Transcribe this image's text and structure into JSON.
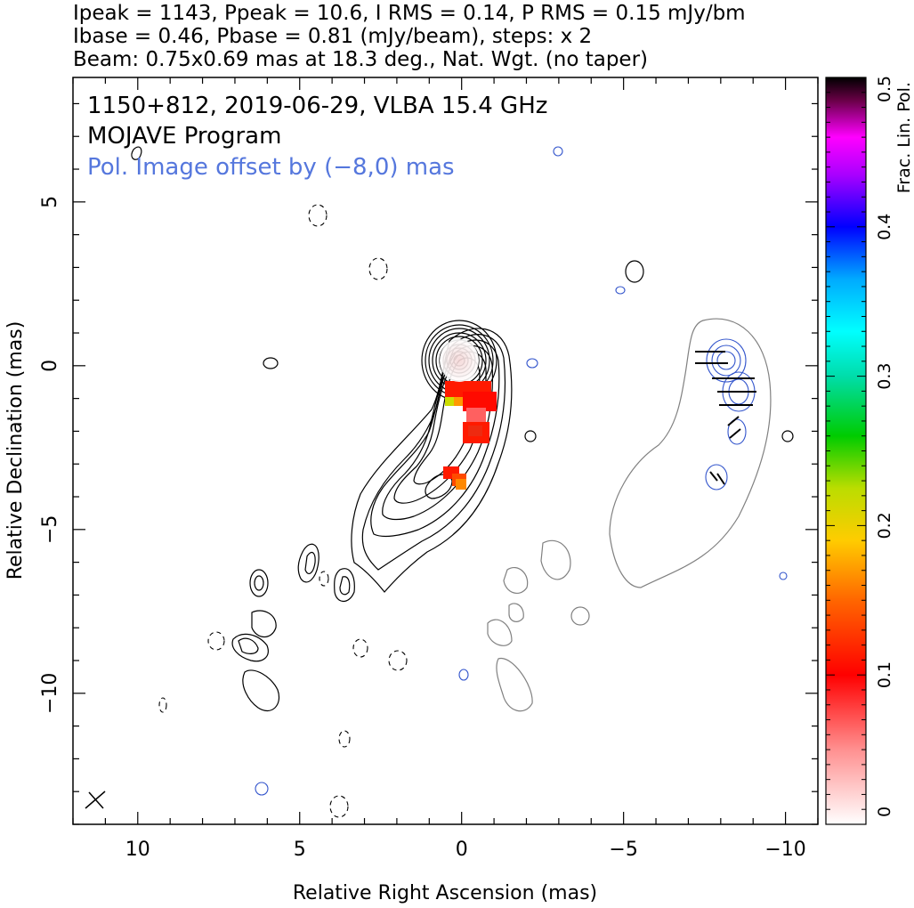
{
  "header": {
    "line1": "Ipeak = 1143, Ppeak = 10.6, I RMS = 0.14, P RMS = 0.15 mJy/bm",
    "line2": "Ibase = 0.46, Pbase = 0.81 (mJy/beam), steps: x 2",
    "line3": "Beam: 0.75x0.69 mas at 18.3 deg., Nat. Wgt. (no taper)"
  },
  "chart_data": {
    "type": "contour",
    "title": "1150+812, 2019-06-29, VLBA 15.4 GHz",
    "subtitle": "MOJAVE Program",
    "annotation": "Pol. Image offset by (−8,0) mas",
    "xlabel": "Relative Right Ascension (mas)",
    "ylabel": "Relative Declination (mas)",
    "colorbar_label": "Frac. Lin. Pol.",
    "xlim": [
      12,
      -11
    ],
    "ylim": [
      -14,
      8.8
    ],
    "x_ticks": [
      "10",
      "5",
      "0",
      "−5",
      "−10"
    ],
    "x_tick_values": [
      10,
      5,
      0,
      -5,
      -10
    ],
    "y_ticks": [
      "5",
      "0",
      "−5",
      "−10"
    ],
    "y_tick_values": [
      5,
      0,
      -5,
      -10
    ],
    "colorbar_range": [
      0,
      0.5
    ],
    "colorbar_ticks": [
      "0",
      "0.1",
      "0.2",
      "0.3",
      "0.4",
      "0.5"
    ],
    "colorbar_tick_values": [
      0,
      0.1,
      0.2,
      0.3,
      0.4,
      0.5
    ],
    "core_position": [
      0,
      0
    ],
    "pol_image_offset": [
      -8,
      0
    ],
    "beam_major_mas": 0.75,
    "beam_minor_mas": 0.69,
    "beam_pa_deg": 18.3,
    "frac_pol_regions": [
      {
        "x": -0.8,
        "y": -1.2,
        "value": 0.07
      },
      {
        "x": -0.5,
        "y": -2.2,
        "value": 0.09
      },
      {
        "x": 0.0,
        "y": -3.6,
        "value": 0.12
      },
      {
        "x": 0.2,
        "y": -1.2,
        "value": 0.2
      }
    ],
    "colors": {
      "stokes_i": "#000000",
      "pol_contours": "#3355cc",
      "pol_outline": "#808080",
      "annotation": "#5577dd"
    }
  }
}
